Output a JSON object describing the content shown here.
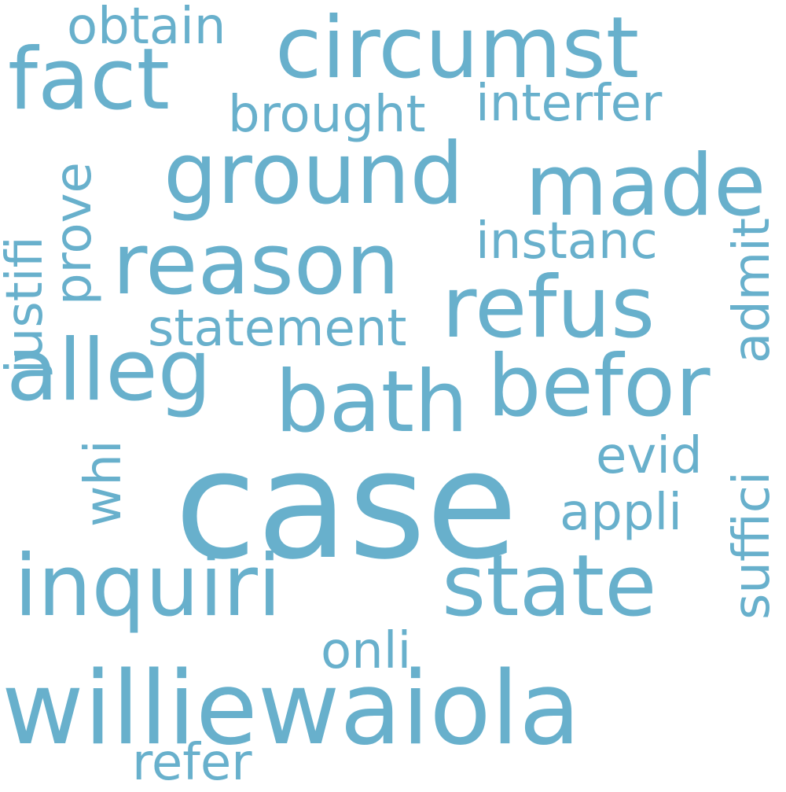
{
  "word_color": "#68b0cc",
  "background": "#ffffff",
  "words": {
    "case": "case",
    "williewaiola": "williewaiola",
    "inquiri": "inquiri",
    "state": "state",
    "ground": "ground",
    "made": "made",
    "reason": "reason",
    "refus": "refus",
    "alleg": "alleg",
    "bath": "bath",
    "befor": "befor",
    "fact": "fact",
    "circumst": "circumst",
    "obtain": "obtain",
    "brought": "brought",
    "interfer": "interfer",
    "instanc": "instanc",
    "statement": "statement",
    "evid": "evid",
    "appli": "appli",
    "onli": "onli",
    "refer": "refer",
    "justifi": "justifi",
    "prove": "prove",
    "whi": "whi",
    "admit": "admit",
    "suffici": "suffici"
  }
}
